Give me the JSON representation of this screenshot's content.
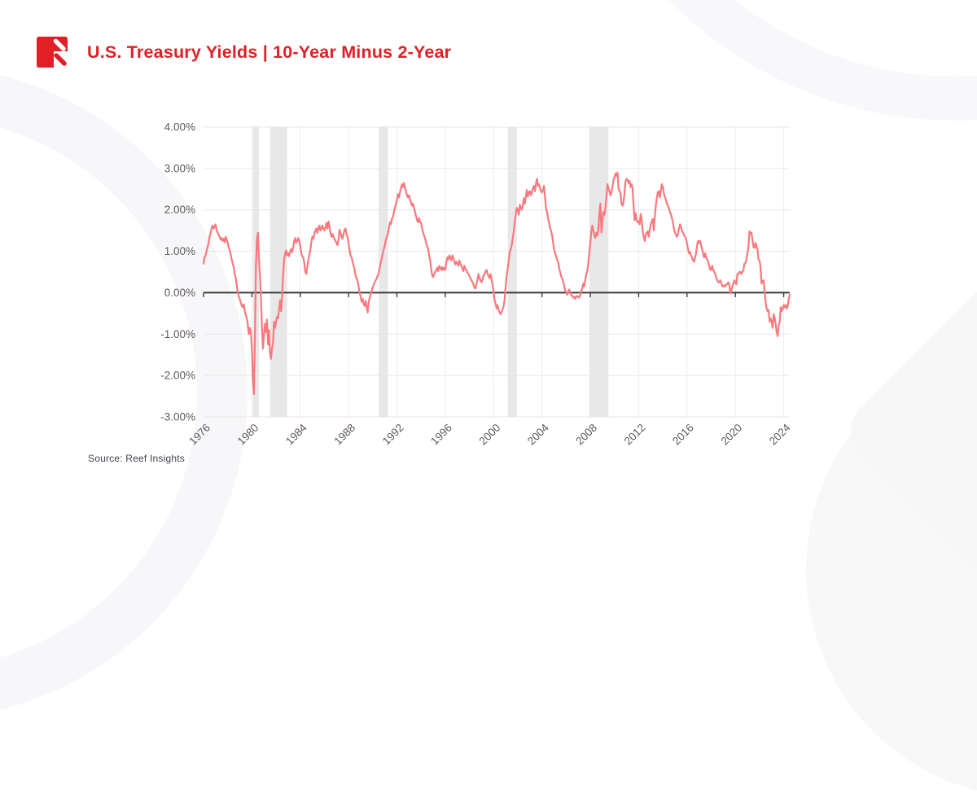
{
  "header": {
    "title": "U.S. Treasury Yields | 10-Year Minus 2-Year"
  },
  "footer": {
    "source": "Source: Reef Insights"
  },
  "colors": {
    "brand_red": "#e01f26",
    "line": "#f8797e",
    "grid_h": "#e7e7e7",
    "grid_v": "#ededed",
    "axis": "#3c3c3c",
    "recession_band": "#e5e5e5",
    "tick_text": "#5f5955",
    "background": "#ffffff"
  },
  "chart_data": {
    "type": "line",
    "title": "U.S. Treasury Yields | 10-Year Minus 2-Year",
    "series_name": "10-Year minus 2-Year Treasury yield spread",
    "unit": "%",
    "xlabel": "",
    "ylabel": "",
    "grid": true,
    "legend": false,
    "x_domain": [
      1976,
      2024.5
    ],
    "ylim": [
      -3,
      4
    ],
    "y_ticks": [
      {
        "value": 4,
        "label": "4.00%"
      },
      {
        "value": 3,
        "label": "3.00%"
      },
      {
        "value": 2,
        "label": "2.00%"
      },
      {
        "value": 1,
        "label": "1.00%"
      },
      {
        "value": 0,
        "label": "0.00%"
      },
      {
        "value": -1,
        "label": "-1.00%"
      },
      {
        "value": -2,
        "label": "-2.00%"
      },
      {
        "value": -3,
        "label": "-3.00%"
      }
    ],
    "x_ticks": [
      {
        "value": 1976,
        "label": "1976"
      },
      {
        "value": 1980,
        "label": "1980"
      },
      {
        "value": 1984,
        "label": "1984"
      },
      {
        "value": 1988,
        "label": "1988"
      },
      {
        "value": 1992,
        "label": "1992"
      },
      {
        "value": 1996,
        "label": "1996"
      },
      {
        "value": 2000,
        "label": "2000"
      },
      {
        "value": 2004,
        "label": "2004"
      },
      {
        "value": 2008,
        "label": "2008"
      },
      {
        "value": 2012,
        "label": "2012"
      },
      {
        "value": 2016,
        "label": "2016"
      },
      {
        "value": 2020,
        "label": "2020"
      },
      {
        "value": 2024,
        "label": "2024"
      }
    ],
    "recession_bands": [
      [
        1980.08,
        1980.58
      ],
      [
        1981.5,
        1982.92
      ],
      [
        1990.5,
        1991.25
      ],
      [
        2001.17,
        2001.92
      ],
      [
        2007.92,
        2009.5
      ]
    ],
    "start_year": 1976,
    "points_per_year": 12,
    "values": [
      0.7,
      0.85,
      0.9,
      1.0,
      1.1,
      1.2,
      1.35,
      1.45,
      1.55,
      1.62,
      1.55,
      1.6,
      1.65,
      1.5,
      1.45,
      1.4,
      1.35,
      1.28,
      1.32,
      1.25,
      1.3,
      1.22,
      1.35,
      1.28,
      1.2,
      1.1,
      1.02,
      0.92,
      0.8,
      0.7,
      0.62,
      0.45,
      0.35,
      0.18,
      0.0,
      -0.1,
      -0.15,
      -0.25,
      -0.32,
      -0.35,
      -0.28,
      -0.45,
      -0.55,
      -0.62,
      -0.78,
      -1.0,
      -0.85,
      -0.95,
      -1.35,
      -2.1,
      -2.45,
      -1.1,
      0.6,
      1.3,
      1.45,
      0.85,
      0.4,
      -0.15,
      -0.85,
      -1.35,
      -1.05,
      -0.75,
      -0.95,
      -0.65,
      -1.25,
      -0.9,
      -1.45,
      -1.6,
      -1.35,
      -1.2,
      -0.7,
      -0.85,
      -0.7,
      -0.58,
      -0.62,
      -0.4,
      -0.18,
      -0.45,
      -0.08,
      0.42,
      0.8,
      0.95,
      1.02,
      0.9,
      0.95,
      0.88,
      1.0,
      1.05,
      0.98,
      1.1,
      1.25,
      1.32,
      1.2,
      1.25,
      1.32,
      1.25,
      1.12,
      0.95,
      0.88,
      0.85,
      0.72,
      0.52,
      0.45,
      0.62,
      0.78,
      0.92,
      1.02,
      1.22,
      1.35,
      1.3,
      1.42,
      1.5,
      1.55,
      1.45,
      1.55,
      1.62,
      1.5,
      1.55,
      1.62,
      1.55,
      1.5,
      1.58,
      1.68,
      1.55,
      1.72,
      1.6,
      1.45,
      1.35,
      1.42,
      1.35,
      1.3,
      1.25,
      1.2,
      1.15,
      1.28,
      1.52,
      1.45,
      1.35,
      1.3,
      1.42,
      1.52,
      1.55,
      1.4,
      1.35,
      1.2,
      1.02,
      0.9,
      0.85,
      0.75,
      0.65,
      0.55,
      0.4,
      0.35,
      0.28,
      0.15,
      0.0,
      -0.1,
      -0.22,
      -0.15,
      -0.28,
      -0.32,
      -0.2,
      -0.35,
      -0.48,
      -0.22,
      -0.12,
      -0.05,
      0.05,
      0.12,
      0.2,
      0.25,
      0.3,
      0.35,
      0.42,
      0.48,
      0.62,
      0.72,
      0.85,
      0.95,
      1.05,
      1.15,
      1.28,
      1.35,
      1.42,
      1.55,
      1.7,
      1.65,
      1.78,
      1.82,
      1.95,
      2.05,
      2.15,
      2.25,
      2.38,
      2.3,
      2.42,
      2.52,
      2.62,
      2.55,
      2.65,
      2.55,
      2.45,
      2.35,
      2.3,
      2.35,
      2.25,
      2.18,
      2.1,
      2.15,
      2.05,
      1.95,
      1.85,
      1.75,
      1.7,
      1.8,
      1.72,
      1.68,
      1.55,
      1.45,
      1.38,
      1.3,
      1.2,
      1.12,
      1.05,
      0.9,
      0.78,
      0.58,
      0.42,
      0.38,
      0.45,
      0.5,
      0.55,
      0.6,
      0.52,
      0.65,
      0.6,
      0.55,
      0.62,
      0.55,
      0.6,
      0.55,
      0.72,
      0.85,
      0.8,
      0.9,
      0.85,
      0.78,
      0.9,
      0.85,
      0.75,
      0.68,
      0.75,
      0.7,
      0.65,
      0.78,
      0.7,
      0.65,
      0.58,
      0.52,
      0.65,
      0.58,
      0.55,
      0.48,
      0.45,
      0.4,
      0.35,
      0.3,
      0.25,
      0.2,
      0.12,
      0.1,
      0.22,
      0.32,
      0.45,
      0.35,
      0.3,
      0.25,
      0.32,
      0.42,
      0.45,
      0.52,
      0.55,
      0.45,
      0.4,
      0.35,
      0.45,
      0.3,
      0.18,
      0.02,
      -0.18,
      -0.28,
      -0.38,
      -0.3,
      -0.42,
      -0.48,
      -0.52,
      -0.45,
      -0.4,
      -0.32,
      -0.15,
      0.15,
      0.42,
      0.58,
      0.78,
      0.98,
      1.05,
      1.15,
      1.32,
      1.48,
      1.72,
      1.88,
      2.05,
      2.0,
      1.88,
      2.12,
      2.05,
      2.0,
      2.12,
      2.28,
      2.15,
      2.32,
      2.48,
      2.32,
      2.42,
      2.45,
      2.35,
      2.42,
      2.52,
      2.58,
      2.45,
      2.62,
      2.75,
      2.58,
      2.62,
      2.52,
      2.45,
      2.42,
      2.48,
      2.58,
      2.32,
      2.05,
      1.95,
      1.8,
      1.7,
      1.55,
      1.5,
      1.4,
      1.22,
      1.05,
      0.95,
      0.88,
      0.8,
      0.75,
      0.6,
      0.5,
      0.4,
      0.35,
      0.28,
      0.18,
      0.05,
      0.02,
      -0.05,
      0.0,
      0.08,
      0.02,
      -0.05,
      -0.08,
      -0.12,
      -0.1,
      -0.15,
      -0.1,
      -0.08,
      -0.1,
      -0.12,
      -0.05,
      0.05,
      0.1,
      0.22,
      0.15,
      0.32,
      0.45,
      0.52,
      0.72,
      0.95,
      1.22,
      1.48,
      1.62,
      1.5,
      1.4,
      1.32,
      1.45,
      1.38,
      1.52,
      1.92,
      2.15,
      1.45,
      1.72,
      1.95,
      1.88,
      2.05,
      2.32,
      2.62,
      2.52,
      2.45,
      2.35,
      2.42,
      2.55,
      2.72,
      2.78,
      2.88,
      2.82,
      2.9,
      2.52,
      2.45,
      2.4,
      2.15,
      2.1,
      2.18,
      2.42,
      2.7,
      2.75,
      2.72,
      2.65,
      2.7,
      2.55,
      2.62,
      2.52,
      2.1,
      1.75,
      1.92,
      1.75,
      1.7,
      1.72,
      1.65,
      1.9,
      1.78,
      1.5,
      1.35,
      1.25,
      1.4,
      1.45,
      1.48,
      1.35,
      1.52,
      1.65,
      1.72,
      1.78,
      1.5,
      1.82,
      2.1,
      2.28,
      2.42,
      2.45,
      2.3,
      2.45,
      2.62,
      2.55,
      2.4,
      2.32,
      2.25,
      2.15,
      2.1,
      2.05,
      1.95,
      1.9,
      1.8,
      1.7,
      1.55,
      1.45,
      1.4,
      1.35,
      1.42,
      1.55,
      1.65,
      1.6,
      1.5,
      1.45,
      1.4,
      1.35,
      1.3,
      1.2,
      1.05,
      0.95,
      0.98,
      0.9,
      0.85,
      0.78,
      0.75,
      0.85,
      0.95,
      1.15,
      1.25,
      1.2,
      1.25,
      1.15,
      1.05,
      0.95,
      0.85,
      0.95,
      0.85,
      0.8,
      0.75,
      0.65,
      0.55,
      0.55,
      0.65,
      0.55,
      0.5,
      0.45,
      0.35,
      0.3,
      0.25,
      0.25,
      0.3,
      0.25,
      0.15,
      0.15,
      0.18,
      0.15,
      0.2,
      0.2,
      0.25,
      0.2,
      -0.02,
      0.05,
      0.15,
      0.22,
      0.3,
      0.25,
      0.2,
      0.45,
      0.45,
      0.5,
      0.5,
      0.45,
      0.5,
      0.55,
      0.7,
      0.72,
      0.8,
      0.95,
      1.12,
      1.48,
      1.42,
      1.45,
      1.28,
      1.1,
      1.08,
      1.2,
      1.12,
      1.05,
      0.8,
      0.78,
      0.62,
      0.22,
      0.28,
      0.3,
      0.05,
      -0.22,
      -0.38,
      -0.45,
      -0.42,
      -0.7,
      -0.62,
      -0.7,
      -0.85,
      -0.52,
      -0.6,
      -0.75,
      -0.95,
      -1.05,
      -0.78,
      -0.72,
      -0.35,
      -0.45,
      -0.4,
      -0.3,
      -0.35,
      -0.3,
      -0.38,
      -0.32,
      -0.15,
      -0.05
    ]
  }
}
